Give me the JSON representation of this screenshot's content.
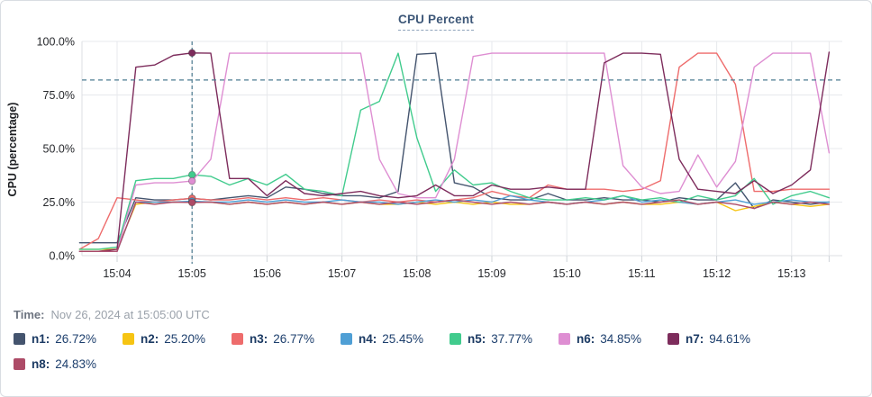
{
  "header": {
    "title": "CPU Percent"
  },
  "footer": {
    "time_label": "Time:",
    "time_value": "Nov 26, 2024 at 15:05:00 UTC"
  },
  "chart_data": {
    "type": "line",
    "title": "CPU Percent",
    "xlabel": "",
    "ylabel": "CPU (percentage)",
    "ylim": [
      0,
      100
    ],
    "grid": true,
    "y_ticks": [
      {
        "value": 0,
        "label": "0.0%"
      },
      {
        "value": 25,
        "label": "25.0%"
      },
      {
        "value": 50,
        "label": "50.0%"
      },
      {
        "value": 75,
        "label": "75.0%"
      },
      {
        "value": 100,
        "label": "100.0%"
      }
    ],
    "x_ticks": [
      "15:04",
      "15:05",
      "15:06",
      "15:07",
      "15:08",
      "15:09",
      "15:10",
      "15:11",
      "15:12",
      "15:13"
    ],
    "t_start": -0.5,
    "t_step": 0.25,
    "threshold_percent": 82,
    "crosshair": {
      "x_label": "15:05",
      "time_index": 6
    },
    "series": [
      {
        "id": "n1",
        "label": "n1:",
        "value": "26.72%",
        "color": "#44546e",
        "values": [
          6,
          6,
          6,
          27,
          26,
          26,
          26.72,
          26,
          27,
          28,
          27,
          32,
          31,
          29,
          28,
          28,
          27,
          30,
          94,
          94.5,
          34,
          32,
          27,
          26,
          26,
          29,
          26,
          26,
          27,
          26,
          26,
          25,
          27,
          26,
          26,
          34,
          22,
          26,
          25,
          24,
          25
        ]
      },
      {
        "id": "n2",
        "label": "n2:",
        "value": "25.20%",
        "color": "#f6c413",
        "values": [
          3,
          3,
          3,
          24,
          25,
          25,
          25.2,
          25,
          24,
          25,
          24,
          25,
          24,
          25,
          24,
          25,
          24,
          24,
          25,
          24,
          25,
          24,
          25,
          24,
          24,
          25,
          24,
          25,
          24,
          25,
          24,
          24,
          25,
          24,
          25,
          21,
          23,
          25,
          24,
          23,
          24
        ]
      },
      {
        "id": "n3",
        "label": "n3:",
        "value": "26.77%",
        "color": "#ee6c6c",
        "values": [
          3,
          8,
          27,
          26,
          25,
          26,
          26.77,
          26,
          26,
          27,
          26,
          27,
          26,
          27,
          26,
          25,
          26,
          25,
          26,
          25,
          26,
          27,
          30,
          28,
          27,
          33,
          31,
          31,
          31,
          30,
          31,
          35,
          88,
          94.5,
          94.5,
          80,
          30,
          30,
          31,
          31,
          31
        ]
      },
      {
        "id": "n4",
        "label": "n4:",
        "value": "25.45%",
        "color": "#4f9fd5",
        "values": [
          2,
          2,
          2,
          25,
          25,
          25,
          25.45,
          25,
          25,
          26,
          25,
          26,
          25,
          25,
          26,
          25,
          25,
          24,
          25,
          26,
          25,
          26,
          25,
          28,
          26,
          25,
          24,
          25,
          26,
          28,
          25,
          26,
          25,
          24,
          25,
          26,
          24,
          25,
          26,
          25,
          25
        ]
      },
      {
        "id": "n5",
        "label": "n5:",
        "value": "37.77%",
        "color": "#41cb8d",
        "values": [
          3,
          3,
          4,
          35,
          36,
          36,
          37.77,
          37,
          33,
          36,
          33,
          38,
          31,
          30,
          28,
          68,
          72,
          94.5,
          55,
          30,
          40,
          33,
          34,
          30,
          27,
          26,
          26,
          27,
          26,
          28,
          26,
          27,
          25,
          28,
          26,
          28,
          36,
          24,
          28,
          30,
          27
        ]
      },
      {
        "id": "n6",
        "label": "n6:",
        "value": "34.85%",
        "color": "#de8ed2",
        "values": [
          2,
          2,
          2,
          33,
          34,
          34,
          34.85,
          45,
          94.5,
          94.5,
          94.5,
          94.5,
          94.5,
          94.5,
          94.5,
          94.5,
          45,
          29,
          27,
          27,
          45,
          93,
          94.5,
          94.5,
          94.5,
          94.5,
          94.5,
          94.5,
          94.5,
          42,
          32,
          29,
          30,
          47,
          32,
          44,
          88,
          94.5,
          94.5,
          94.5,
          48
        ]
      },
      {
        "id": "n7",
        "label": "n7:",
        "value": "94.61%",
        "color": "#7d2c5c",
        "values": [
          2,
          2,
          3,
          88,
          89,
          93.5,
          94.61,
          94.5,
          36,
          36,
          28,
          35,
          29,
          28,
          29,
          30,
          28,
          27,
          28,
          33,
          28,
          28,
          33,
          31,
          31,
          32,
          31,
          31,
          90,
          94.5,
          94.5,
          94,
          45,
          31,
          30,
          29,
          35,
          29,
          33,
          40,
          95
        ]
      },
      {
        "id": "n8",
        "label": "n8:",
        "value": "24.83%",
        "color": "#ad4b67",
        "values": [
          2,
          2,
          2,
          25,
          24,
          25,
          24.83,
          25,
          24,
          25,
          24,
          25,
          24,
          25,
          24,
          25,
          24,
          25,
          24,
          25,
          26,
          25,
          24,
          25,
          24,
          25,
          24,
          25,
          24,
          25,
          24,
          25,
          26,
          24,
          25,
          24,
          22,
          25,
          24,
          25,
          24
        ]
      }
    ]
  }
}
